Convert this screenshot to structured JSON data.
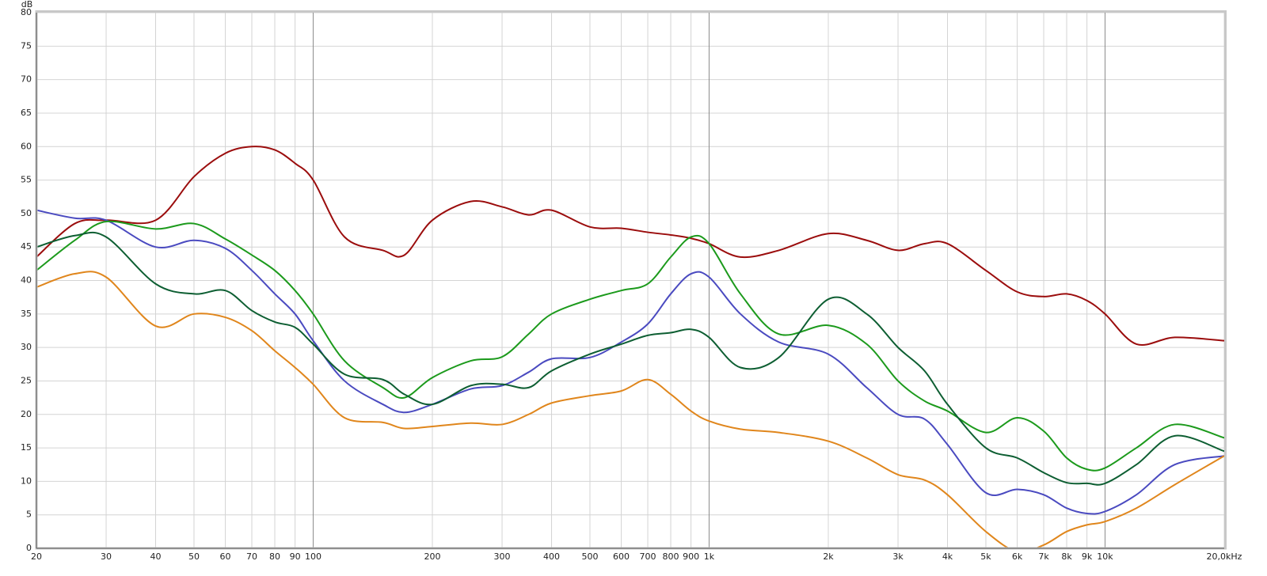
{
  "chart_data": {
    "type": "line",
    "y_label": "dB",
    "log_x": true,
    "grid": true,
    "x": [
      20,
      25,
      30,
      40,
      50,
      60,
      70,
      80,
      90,
      100,
      120,
      150,
      170,
      200,
      250,
      300,
      350,
      400,
      500,
      600,
      700,
      800,
      900,
      1000,
      1200,
      1500,
      2000,
      2500,
      3000,
      3500,
      4000,
      5000,
      6000,
      7000,
      8000,
      9000,
      10000,
      12000,
      15000,
      20000
    ],
    "series": [
      {
        "color": "#9b0d0d",
        "values": [
          43.5,
          48.5,
          49,
          49,
          55.5,
          59,
          60,
          59.5,
          57.5,
          55,
          46.5,
          44.5,
          43.8,
          49,
          51.8,
          51,
          49.8,
          50.5,
          48,
          47.8,
          47.2,
          46.8,
          46.3,
          45.5,
          43.5,
          44.5,
          47,
          46,
          44.5,
          45.5,
          45.5,
          41.5,
          38.3,
          37.6,
          38,
          37,
          35,
          30.5,
          31.5,
          31
        ]
      },
      {
        "color": "#4a4ac0",
        "values": [
          50.5,
          49.3,
          49,
          45,
          46,
          44.8,
          41.5,
          38,
          35,
          31,
          25,
          21.5,
          20.3,
          21.5,
          23.8,
          24.3,
          26.3,
          28.3,
          28.5,
          30.8,
          33.5,
          38,
          41,
          40.5,
          35,
          30.8,
          29,
          24,
          20,
          19.3,
          15.5,
          8.3,
          8.8,
          8,
          6,
          5.2,
          5.5,
          8,
          12.5,
          13.8
        ]
      },
      {
        "color": "#1c9a1c",
        "values": [
          41.5,
          46,
          48.8,
          47.7,
          48.5,
          46.2,
          43.8,
          41.5,
          38.5,
          35,
          28,
          24,
          22.5,
          25.5,
          28,
          28.6,
          32,
          35,
          37.2,
          38.5,
          39.5,
          43.5,
          46.5,
          45.5,
          38,
          32,
          33.3,
          30.5,
          25,
          22,
          20.5,
          17.3,
          19.5,
          17.5,
          13.5,
          11.8,
          12,
          15,
          18.5,
          16.5
        ]
      },
      {
        "color": "#0d5e32",
        "values": [
          45,
          46.7,
          46.5,
          39.5,
          38,
          38.5,
          35.5,
          33.8,
          33,
          30.5,
          26,
          25.2,
          23,
          21.5,
          24.3,
          24.5,
          24,
          26.5,
          29,
          30.5,
          31.8,
          32.2,
          32.7,
          31.5,
          27,
          28.5,
          37.2,
          35,
          30,
          26.5,
          21.5,
          15,
          13.5,
          11.3,
          9.8,
          9.7,
          9.7,
          12.5,
          16.8,
          14.5
        ]
      },
      {
        "color": "#e0861c",
        "values": [
          39,
          41,
          40.5,
          33.2,
          35,
          34.5,
          32.5,
          29.5,
          27,
          24.5,
          19.5,
          18.8,
          17.9,
          18.2,
          18.7,
          18.5,
          20,
          21.7,
          22.8,
          23.5,
          25.2,
          23,
          20.5,
          19,
          17.8,
          17.3,
          16,
          13.5,
          11,
          10.2,
          8,
          2.5,
          -0.5,
          0.5,
          2.5,
          3.5,
          4,
          6,
          9.5,
          13.8
        ]
      }
    ],
    "xlim": [
      20,
      20000
    ],
    "xticks": [
      20,
      30,
      40,
      50,
      60,
      70,
      80,
      90,
      100,
      200,
      300,
      400,
      500,
      600,
      700,
      800,
      900,
      {
        "value": 1000,
        "label": "1k"
      },
      {
        "value": 2000,
        "label": "2k"
      },
      {
        "value": 3000,
        "label": "3k"
      },
      {
        "value": 4000,
        "label": "4k"
      },
      {
        "value": 5000,
        "label": "5k"
      },
      {
        "value": 6000,
        "label": "6k"
      },
      {
        "value": 7000,
        "label": "7k"
      },
      {
        "value": 8000,
        "label": "8k"
      },
      {
        "value": 9000,
        "label": "9k"
      },
      {
        "value": 10000,
        "label": "10k"
      },
      {
        "value": 20000,
        "label": "20,0kHz"
      }
    ],
    "ylim": [
      0,
      80
    ],
    "yticks": [
      0,
      5,
      10,
      15,
      20,
      25,
      30,
      35,
      40,
      45,
      50,
      55,
      60,
      65,
      70,
      75,
      80
    ]
  }
}
